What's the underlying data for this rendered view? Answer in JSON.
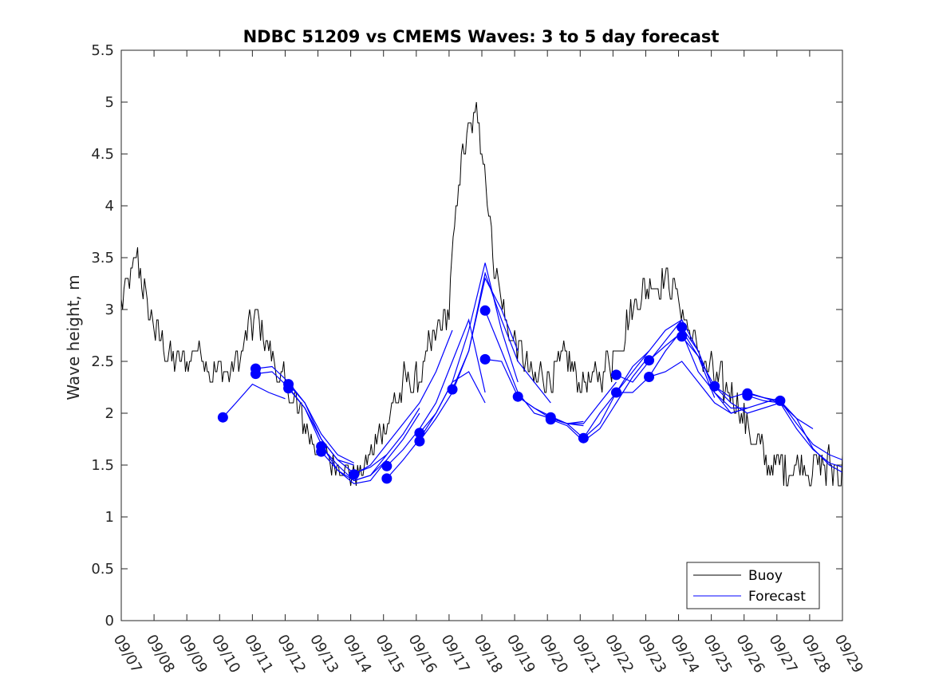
{
  "chart_data": {
    "type": "line",
    "title": "NDBC 51209 vs CMEMS Waves: 3 to 5 day forecast",
    "xlabel": "",
    "ylabel": "Wave height, m",
    "ylim": [
      0,
      5.5
    ],
    "yticks": [
      0,
      0.5,
      1,
      1.5,
      2,
      2.5,
      3,
      3.5,
      4,
      4.5,
      5,
      5.5
    ],
    "ytick_labels": [
      "0",
      "0.5",
      "1",
      "1.5",
      "2",
      "2.5",
      "3",
      "3.5",
      "4",
      "4.5",
      "5",
      "5.5"
    ],
    "xlim_days": [
      0,
      22
    ],
    "xtick_labels": [
      "09/07",
      "09/08",
      "09/09",
      "09/10",
      "09/11",
      "09/12",
      "09/13",
      "09/14",
      "09/15",
      "09/16",
      "09/17",
      "09/18",
      "09/19",
      "09/20",
      "09/21",
      "09/22",
      "09/23",
      "09/24",
      "09/25",
      "09/26",
      "09/27",
      "09/28",
      "09/29"
    ],
    "legend": {
      "location": "bottom-right",
      "entries": [
        {
          "label": "Buoy",
          "color": "#000000"
        },
        {
          "label": "Forecast",
          "color": "#0000ff"
        }
      ]
    },
    "buoy": {
      "name": "Buoy",
      "color": "#000000",
      "x": [
        0,
        0.3,
        0.5,
        0.8,
        1.2,
        1.6,
        2.0,
        2.4,
        2.8,
        3.2,
        3.6,
        3.9,
        4.1,
        4.3,
        4.6,
        4.9,
        5.3,
        5.6,
        5.9,
        6.2,
        6.5,
        6.8,
        7.1,
        7.5,
        7.8,
        8.1,
        8.4,
        8.7,
        9.0,
        9.3,
        9.7,
        10.0,
        10.3,
        10.6,
        10.9,
        11.0,
        11.2,
        11.4,
        11.6,
        11.8,
        12.0,
        12.3,
        12.6,
        12.9,
        13.2,
        13.6,
        14.0,
        14.3,
        14.6,
        14.9,
        15.3,
        15.6,
        16.0,
        16.3,
        16.6,
        16.9,
        17.1,
        17.3,
        17.6,
        17.9,
        18.2,
        18.5,
        18.8,
        19.1,
        19.4,
        19.7,
        20.0,
        20.3,
        20.6,
        20.9,
        21.2,
        21.5,
        21.8,
        22.0
      ],
      "y": [
        3.1,
        3.3,
        3.5,
        3.0,
        2.7,
        2.5,
        2.5,
        2.6,
        2.4,
        2.4,
        2.5,
        2.8,
        2.9,
        2.8,
        2.5,
        2.3,
        2.1,
        1.9,
        1.7,
        1.6,
        1.5,
        1.45,
        1.4,
        1.5,
        1.7,
        1.9,
        2.1,
        2.3,
        2.3,
        2.5,
        2.8,
        3.0,
        4.3,
        4.7,
        4.9,
        4.6,
        4.0,
        3.4,
        3.1,
        2.8,
        2.7,
        2.5,
        2.3,
        2.4,
        2.4,
        2.5,
        2.3,
        2.3,
        2.4,
        2.5,
        2.8,
        3.0,
        3.2,
        3.3,
        3.3,
        3.2,
        3.0,
        2.8,
        2.6,
        2.4,
        2.3,
        2.2,
        2.1,
        1.9,
        1.7,
        1.5,
        1.45,
        1.45,
        1.5,
        1.55,
        1.5,
        1.45,
        1.45,
        1.45
      ],
      "noise_amplitude": 0.15
    },
    "forecast_series": [
      {
        "name": "Forecast",
        "color": "#0000ff",
        "x": [
          3.1,
          3.5,
          4.0,
          4.5,
          5.0
        ],
        "y": [
          1.96,
          2.1,
          2.28,
          2.2,
          2.14
        ]
      },
      {
        "name": "Forecast",
        "color": "#0000ff",
        "x": [
          4.1,
          4.6,
          5.1,
          5.6,
          6.1,
          6.6,
          7.1
        ],
        "y": [
          2.43,
          2.45,
          2.3,
          2.1,
          1.8,
          1.6,
          1.52
        ]
      },
      {
        "name": "Forecast",
        "color": "#0000ff",
        "x": [
          4.1,
          4.6,
          5.1,
          5.6,
          6.1,
          6.6,
          7.1
        ],
        "y": [
          2.38,
          2.4,
          2.25,
          2.05,
          1.75,
          1.55,
          1.5
        ]
      },
      {
        "name": "Forecast",
        "color": "#0000ff",
        "x": [
          5.1,
          5.6,
          6.1,
          6.6,
          7.1,
          7.6,
          8.1
        ],
        "y": [
          2.28,
          2.1,
          1.75,
          1.55,
          1.42,
          1.48,
          1.6
        ]
      },
      {
        "name": "Forecast",
        "color": "#0000ff",
        "x": [
          5.1,
          5.6,
          6.1,
          6.6,
          7.1,
          7.6,
          8.1
        ],
        "y": [
          2.24,
          2.05,
          1.7,
          1.45,
          1.35,
          1.4,
          1.55
        ]
      },
      {
        "name": "Forecast",
        "color": "#0000ff",
        "x": [
          6.1,
          6.6,
          7.1,
          7.6,
          8.1,
          8.6,
          9.1
        ],
        "y": [
          1.68,
          1.5,
          1.35,
          1.4,
          1.6,
          1.8,
          2.05
        ]
      },
      {
        "name": "Forecast",
        "color": "#0000ff",
        "x": [
          6.1,
          6.6,
          7.1,
          7.6,
          8.1,
          8.6,
          9.1
        ],
        "y": [
          1.63,
          1.45,
          1.32,
          1.35,
          1.55,
          1.75,
          2.0
        ]
      },
      {
        "name": "Forecast",
        "color": "#0000ff",
        "x": [
          7.1,
          7.6,
          8.1,
          8.6,
          9.1,
          9.6,
          10.1
        ],
        "y": [
          1.41,
          1.5,
          1.7,
          1.9,
          2.1,
          2.4,
          2.8
        ]
      },
      {
        "name": "Forecast",
        "color": "#0000ff",
        "x": [
          8.1,
          8.6,
          9.1,
          9.6,
          10.1,
          10.6,
          11.1
        ],
        "y": [
          1.49,
          1.65,
          1.85,
          2.1,
          2.5,
          2.9,
          2.2
        ]
      },
      {
        "name": "Forecast",
        "color": "#0000ff",
        "x": [
          8.1,
          8.6,
          9.1,
          9.6,
          10.1,
          10.6,
          11.1
        ],
        "y": [
          1.37,
          1.55,
          1.75,
          2.0,
          2.3,
          2.4,
          2.1
        ]
      },
      {
        "name": "Forecast",
        "color": "#0000ff",
        "x": [
          9.1,
          9.6,
          10.1,
          10.6,
          11.1,
          11.6,
          12.1
        ],
        "y": [
          1.81,
          2.0,
          2.3,
          2.8,
          3.45,
          2.8,
          2.3
        ]
      },
      {
        "name": "Forecast",
        "color": "#0000ff",
        "x": [
          9.1,
          9.6,
          10.1,
          10.6,
          11.1,
          11.6,
          12.1
        ],
        "y": [
          1.73,
          1.95,
          2.2,
          2.6,
          3.3,
          3.0,
          2.6
        ]
      },
      {
        "name": "Forecast",
        "color": "#0000ff",
        "x": [
          10.1,
          10.6,
          11.1,
          11.6,
          12.1,
          12.6,
          13.1
        ],
        "y": [
          2.23,
          2.6,
          3.35,
          2.9,
          2.5,
          2.3,
          2.1
        ]
      },
      {
        "name": "Forecast",
        "color": "#0000ff",
        "x": [
          11.1,
          11.6,
          12.1,
          12.6,
          13.1,
          13.6,
          14.1
        ],
        "y": [
          2.99,
          2.6,
          2.2,
          2.0,
          1.95,
          1.9,
          1.92
        ]
      },
      {
        "name": "Forecast",
        "color": "#0000ff",
        "x": [
          11.1,
          11.6,
          12.1,
          12.6,
          13.1,
          13.6,
          14.1
        ],
        "y": [
          2.52,
          2.5,
          2.16,
          2.05,
          1.95,
          1.9,
          1.88
        ]
      },
      {
        "name": "Forecast",
        "color": "#0000ff",
        "x": [
          12.1,
          12.6,
          13.1,
          13.6,
          14.1,
          14.6,
          15.1
        ],
        "y": [
          2.16,
          2.05,
          1.97,
          1.9,
          1.9,
          2.1,
          2.3
        ]
      },
      {
        "name": "Forecast",
        "color": "#0000ff",
        "x": [
          13.1,
          13.6,
          14.1,
          14.6,
          15.1,
          15.6,
          16.1
        ],
        "y": [
          1.96,
          1.9,
          1.76,
          1.9,
          2.2,
          2.45,
          2.6
        ]
      },
      {
        "name": "Forecast",
        "color": "#0000ff",
        "x": [
          13.1,
          13.6,
          14.1,
          14.6,
          15.1,
          15.6,
          16.1
        ],
        "y": [
          1.94,
          1.88,
          1.73,
          1.85,
          2.1,
          2.35,
          2.55
        ]
      },
      {
        "name": "Forecast",
        "color": "#0000ff",
        "x": [
          14.1,
          14.6,
          15.1,
          15.6,
          16.1,
          16.6,
          17.1
        ],
        "y": [
          1.76,
          2.0,
          2.2,
          2.4,
          2.6,
          2.8,
          2.9
        ]
      },
      {
        "name": "Forecast",
        "color": "#0000ff",
        "x": [
          15.1,
          15.6,
          16.1,
          16.6,
          17.1,
          17.6,
          18.1
        ],
        "y": [
          2.37,
          2.3,
          2.5,
          2.7,
          2.9,
          2.6,
          2.2
        ]
      },
      {
        "name": "Forecast",
        "color": "#0000ff",
        "x": [
          15.1,
          15.6,
          16.1,
          16.6,
          17.1,
          17.6,
          18.1
        ],
        "y": [
          2.2,
          2.2,
          2.35,
          2.6,
          2.8,
          2.55,
          2.15
        ]
      },
      {
        "name": "Forecast",
        "color": "#0000ff",
        "x": [
          16.1,
          16.6,
          17.1,
          17.6,
          18.1,
          18.6,
          19.1
        ],
        "y": [
          2.51,
          2.65,
          2.78,
          2.4,
          2.2,
          2.0,
          2.05
        ]
      },
      {
        "name": "Forecast",
        "color": "#0000ff",
        "x": [
          16.1,
          16.6,
          17.1,
          17.6,
          18.1,
          18.6,
          19.1
        ],
        "y": [
          2.35,
          2.4,
          2.5,
          2.3,
          2.1,
          2.0,
          2.05
        ]
      },
      {
        "name": "Forecast",
        "color": "#0000ff",
        "x": [
          17.1,
          17.6,
          18.1,
          18.6,
          19.1,
          19.6,
          20.1
        ],
        "y": [
          2.83,
          2.6,
          2.2,
          2.05,
          2.05,
          2.1,
          2.15
        ]
      },
      {
        "name": "Forecast",
        "color": "#0000ff",
        "x": [
          17.1,
          17.6,
          18.1,
          18.6,
          19.1,
          19.6,
          20.1
        ],
        "y": [
          2.74,
          2.55,
          2.26,
          2.1,
          2.0,
          2.05,
          2.1
        ]
      },
      {
        "name": "Forecast",
        "color": "#0000ff",
        "x": [
          18.1,
          18.6,
          19.1,
          19.6,
          20.1,
          20.6,
          21.1
        ],
        "y": [
          2.26,
          2.15,
          2.2,
          2.15,
          2.1,
          1.95,
          1.85
        ]
      },
      {
        "name": "Forecast",
        "color": "#0000ff",
        "x": [
          19.1,
          19.6,
          20.1,
          20.6,
          21.1,
          21.6,
          22.0
        ],
        "y": [
          2.19,
          2.15,
          2.12,
          1.9,
          1.7,
          1.6,
          1.55
        ]
      },
      {
        "name": "Forecast",
        "color": "#0000ff",
        "x": [
          19.1,
          19.6,
          20.1,
          20.6,
          21.1,
          21.6,
          22.0
        ],
        "y": [
          2.17,
          2.12,
          2.1,
          1.85,
          1.65,
          1.52,
          1.48
        ]
      },
      {
        "name": "Forecast",
        "color": "#0000ff",
        "x": [
          20.1,
          20.6,
          21.1,
          21.6,
          22.0
        ],
        "y": [
          2.12,
          1.95,
          1.66,
          1.5,
          1.43
        ]
      }
    ]
  }
}
